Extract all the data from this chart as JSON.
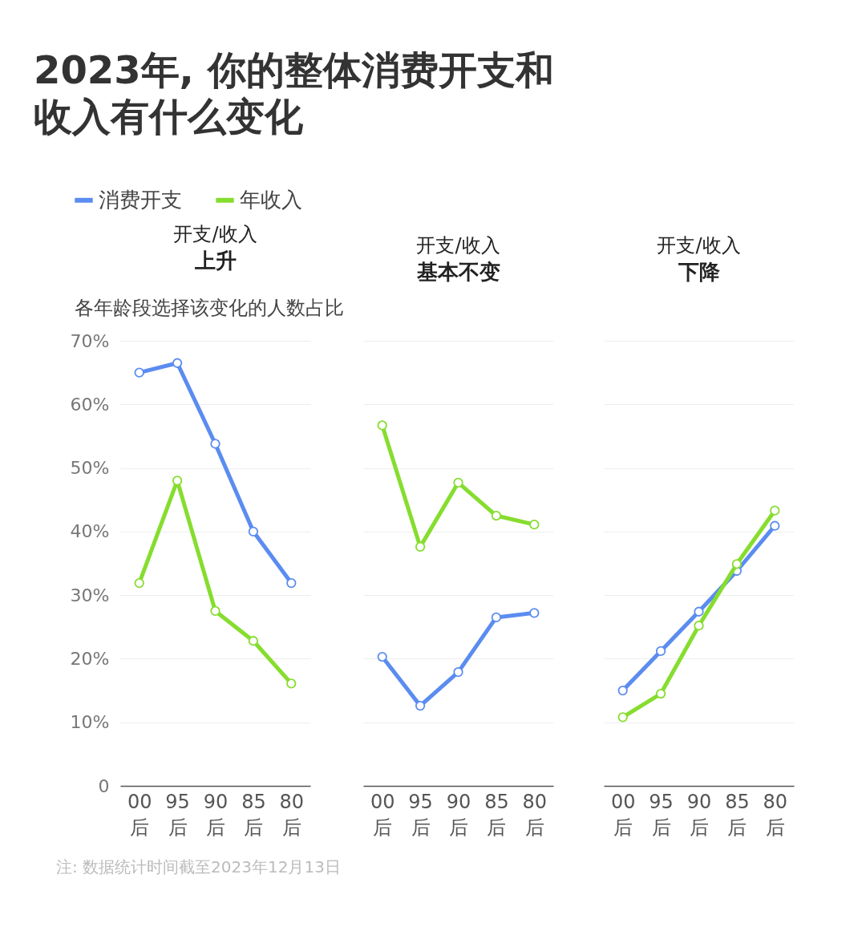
{
  "chart_data": [
    {
      "type": "line",
      "title": "开支/收入",
      "subtitle": "上升",
      "ylabel": "各年龄段选择该变化的人数占比",
      "categories": [
        "00后",
        "95后",
        "90后",
        "85后",
        "80后"
      ],
      "series": [
        {
          "name": "消费开支",
          "color": "#5b8cf0",
          "values": [
            65,
            66.5,
            53.8,
            40,
            31.9
          ]
        },
        {
          "name": "年收入",
          "color": "#86dd2e",
          "values": [
            31.9,
            48,
            27.5,
            22.8,
            16.1
          ]
        }
      ],
      "ylim": [
        0,
        70
      ],
      "yticks": [
        {
          "value": 0,
          "label": "0"
        },
        {
          "value": 10,
          "label": "10%"
        },
        {
          "value": 20,
          "label": "20%"
        },
        {
          "value": 30,
          "label": "30%"
        },
        {
          "value": 40,
          "label": "40%"
        },
        {
          "value": 50,
          "label": "50%"
        },
        {
          "value": 60,
          "label": "60%"
        },
        {
          "value": 70,
          "label": "70%"
        }
      ],
      "grid": "y",
      "legend": "top left",
      "marker": "circle",
      "line_style": "solid",
      "annotations": [
        "2023年, 你的整体消费开支和收入有什么变化",
        "注: 数据统计时间截至2023年12月13日"
      ]
    },
    {
      "type": "line",
      "title": "开支/收入",
      "subtitle": "基本不变",
      "categories": [
        "00后",
        "95后",
        "90后",
        "85后",
        "80后"
      ],
      "series": [
        {
          "color": "#5b8cf0",
          "values": [
            20.3,
            12.6,
            17.9,
            26.5,
            27.2
          ]
        },
        {
          "color": "#86dd2e",
          "values": [
            56.7,
            37.6,
            47.7,
            42.5,
            41.1
          ]
        }
      ],
      "ylim": [
        0,
        70
      ],
      "yticks": [
        {
          "value": 0,
          "label": null
        },
        {
          "value": 10,
          "label": null
        },
        {
          "value": 20,
          "label": null
        },
        {
          "value": 30,
          "label": null
        },
        {
          "value": 40,
          "label": null
        },
        {
          "value": 50,
          "label": null
        },
        {
          "value": 60,
          "label": null
        },
        {
          "value": 70,
          "label": null
        }
      ],
      "grid": "y",
      "tick_labels": "x",
      "marker": "circle",
      "line_style": "solid"
    },
    {
      "type": "line",
      "title": "开支/收入",
      "subtitle": "下降",
      "categories": [
        "00后",
        "95后",
        "90后",
        "85后",
        "80后"
      ],
      "series": [
        {
          "color": "#5b8cf0",
          "values": [
            15,
            21.2,
            27.4,
            33.8,
            40.9
          ]
        },
        {
          "color": "#86dd2e",
          "values": [
            10.8,
            14.5,
            25.2,
            34.9,
            43.3
          ]
        }
      ],
      "ylim": [
        0,
        70
      ],
      "yticks": [
        {
          "value": 0,
          "label": null
        },
        {
          "value": 10,
          "label": null
        },
        {
          "value": 20,
          "label": null
        },
        {
          "value": 30,
          "label": null
        },
        {
          "value": 40,
          "label": null
        },
        {
          "value": 50,
          "label": null
        },
        {
          "value": 60,
          "label": null
        },
        {
          "value": 70,
          "label": null
        }
      ],
      "grid": "y",
      "tick_labels": "x",
      "marker": "circle",
      "line_style": "solid"
    }
  ]
}
